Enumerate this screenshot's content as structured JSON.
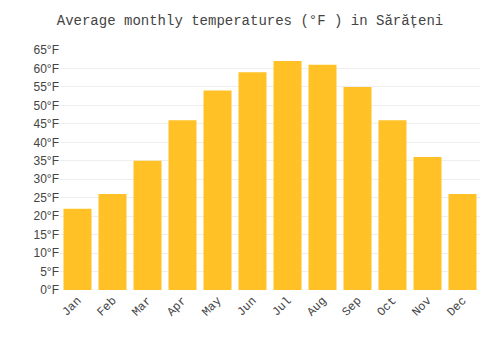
{
  "chart_data": {
    "type": "bar",
    "title": "Average monthly temperatures (°F ) in Sărățeni",
    "categories": [
      "Jan",
      "Feb",
      "Mar",
      "Apr",
      "May",
      "Jun",
      "Jul",
      "Aug",
      "Sep",
      "Oct",
      "Nov",
      "Dec"
    ],
    "values": [
      22,
      26,
      35,
      46,
      54,
      59,
      62,
      61,
      55,
      46,
      36,
      26
    ],
    "color": "#FFC125",
    "ylim": [
      0,
      65
    ],
    "yticks": [
      {
        "value": 0,
        "label": "0°F"
      },
      {
        "value": 5,
        "label": "5°F"
      },
      {
        "value": 10,
        "label": "10°F"
      },
      {
        "value": 15,
        "label": "15°F"
      },
      {
        "value": 20,
        "label": "20°F"
      },
      {
        "value": 25,
        "label": "25°F"
      },
      {
        "value": 30,
        "label": "30°F"
      },
      {
        "value": 35,
        "label": "35°F"
      },
      {
        "value": 40,
        "label": "40°F"
      },
      {
        "value": 45,
        "label": "45°F"
      },
      {
        "value": 50,
        "label": "50°F"
      },
      {
        "value": 55,
        "label": "55°F"
      },
      {
        "value": 60,
        "label": "60°F"
      },
      {
        "value": 65,
        "label": "65°F"
      }
    ],
    "grid": true
  }
}
